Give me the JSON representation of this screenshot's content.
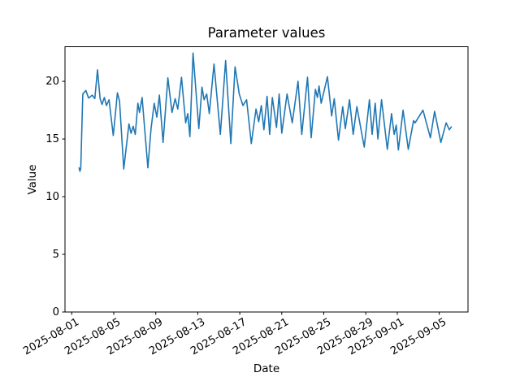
{
  "chart_data": {
    "type": "line",
    "title": "Parameter values",
    "xlabel": "Date",
    "ylabel": "Value",
    "line_color": "#1f77b4",
    "background_color": "#ffffff",
    "grid": false,
    "legend": false,
    "ylim": [
      0,
      23
    ],
    "y_ticks": [
      0,
      5,
      10,
      15,
      20
    ],
    "x_unit_note": "x values are days since 2025-08-01 00:00",
    "x_ticks": [
      {
        "day": 0,
        "label": "2025-08-01"
      },
      {
        "day": 4,
        "label": "2025-08-05"
      },
      {
        "day": 8,
        "label": "2025-08-09"
      },
      {
        "day": 12,
        "label": "2025-08-13"
      },
      {
        "day": 16,
        "label": "2025-08-17"
      },
      {
        "day": 20,
        "label": "2025-08-21"
      },
      {
        "day": 24,
        "label": "2025-08-25"
      },
      {
        "day": 28,
        "label": "2025-08-29"
      },
      {
        "day": 31,
        "label": "2025-09-01"
      },
      {
        "day": 35,
        "label": "2025-09-05"
      }
    ],
    "points": [
      [
        0.7,
        12.5
      ],
      [
        0.78,
        12.2
      ],
      [
        0.86,
        12.45
      ],
      [
        1.05,
        18.9
      ],
      [
        1.35,
        19.2
      ],
      [
        1.6,
        18.55
      ],
      [
        1.95,
        18.8
      ],
      [
        2.2,
        18.5
      ],
      [
        2.45,
        21.0
      ],
      [
        2.7,
        18.5
      ],
      [
        2.88,
        18.0
      ],
      [
        3.1,
        18.6
      ],
      [
        3.3,
        17.9
      ],
      [
        3.55,
        18.4
      ],
      [
        3.95,
        15.3
      ],
      [
        4.35,
        19.0
      ],
      [
        4.55,
        18.3
      ],
      [
        4.95,
        12.4
      ],
      [
        5.45,
        16.3
      ],
      [
        5.65,
        15.5
      ],
      [
        5.85,
        16.1
      ],
      [
        6.05,
        15.4
      ],
      [
        6.3,
        18.1
      ],
      [
        6.45,
        17.3
      ],
      [
        6.7,
        18.6
      ],
      [
        7.25,
        12.5
      ],
      [
        7.55,
        15.9
      ],
      [
        7.85,
        18.1
      ],
      [
        8.1,
        16.9
      ],
      [
        8.35,
        18.8
      ],
      [
        8.7,
        14.7
      ],
      [
        9.15,
        20.3
      ],
      [
        9.55,
        17.3
      ],
      [
        9.85,
        18.5
      ],
      [
        10.1,
        17.6
      ],
      [
        10.45,
        20.35
      ],
      [
        10.85,
        16.4
      ],
      [
        11.05,
        17.2
      ],
      [
        11.25,
        15.2
      ],
      [
        11.55,
        22.45
      ],
      [
        12.1,
        15.9
      ],
      [
        12.4,
        19.5
      ],
      [
        12.6,
        18.4
      ],
      [
        12.85,
        18.9
      ],
      [
        13.1,
        17.2
      ],
      [
        13.55,
        21.5
      ],
      [
        14.15,
        15.4
      ],
      [
        14.65,
        21.8
      ],
      [
        15.15,
        14.6
      ],
      [
        15.55,
        21.25
      ],
      [
        15.95,
        18.9
      ],
      [
        16.3,
        17.9
      ],
      [
        16.65,
        18.4
      ],
      [
        17.1,
        14.6
      ],
      [
        17.55,
        17.6
      ],
      [
        17.8,
        16.5
      ],
      [
        18.05,
        17.9
      ],
      [
        18.3,
        15.8
      ],
      [
        18.6,
        18.7
      ],
      [
        18.85,
        15.4
      ],
      [
        19.1,
        18.6
      ],
      [
        19.5,
        16.0
      ],
      [
        19.75,
        18.9
      ],
      [
        20.0,
        15.5
      ],
      [
        20.5,
        18.9
      ],
      [
        21.0,
        16.4
      ],
      [
        21.55,
        20.0
      ],
      [
        21.9,
        15.4
      ],
      [
        22.45,
        20.35
      ],
      [
        22.8,
        15.1
      ],
      [
        23.2,
        19.3
      ],
      [
        23.4,
        18.6
      ],
      [
        23.55,
        19.6
      ],
      [
        23.75,
        18.1
      ],
      [
        24.35,
        20.4
      ],
      [
        24.75,
        17.0
      ],
      [
        25.0,
        18.5
      ],
      [
        25.4,
        14.9
      ],
      [
        25.8,
        17.8
      ],
      [
        26.05,
        15.9
      ],
      [
        26.45,
        18.4
      ],
      [
        26.8,
        15.4
      ],
      [
        27.15,
        17.8
      ],
      [
        27.85,
        14.3
      ],
      [
        28.35,
        18.4
      ],
      [
        28.6,
        15.4
      ],
      [
        28.9,
        18.1
      ],
      [
        29.15,
        15.0
      ],
      [
        29.5,
        18.4
      ],
      [
        30.05,
        14.1
      ],
      [
        30.45,
        17.2
      ],
      [
        30.7,
        15.4
      ],
      [
        30.9,
        16.2
      ],
      [
        31.1,
        14.05
      ],
      [
        31.55,
        17.5
      ],
      [
        32.05,
        14.1
      ],
      [
        32.55,
        16.6
      ],
      [
        32.7,
        16.4
      ],
      [
        33.45,
        17.5
      ],
      [
        34.15,
        15.1
      ],
      [
        34.55,
        17.4
      ],
      [
        35.15,
        14.7
      ],
      [
        35.65,
        16.4
      ],
      [
        35.95,
        15.8
      ],
      [
        36.15,
        16.05
      ]
    ]
  }
}
